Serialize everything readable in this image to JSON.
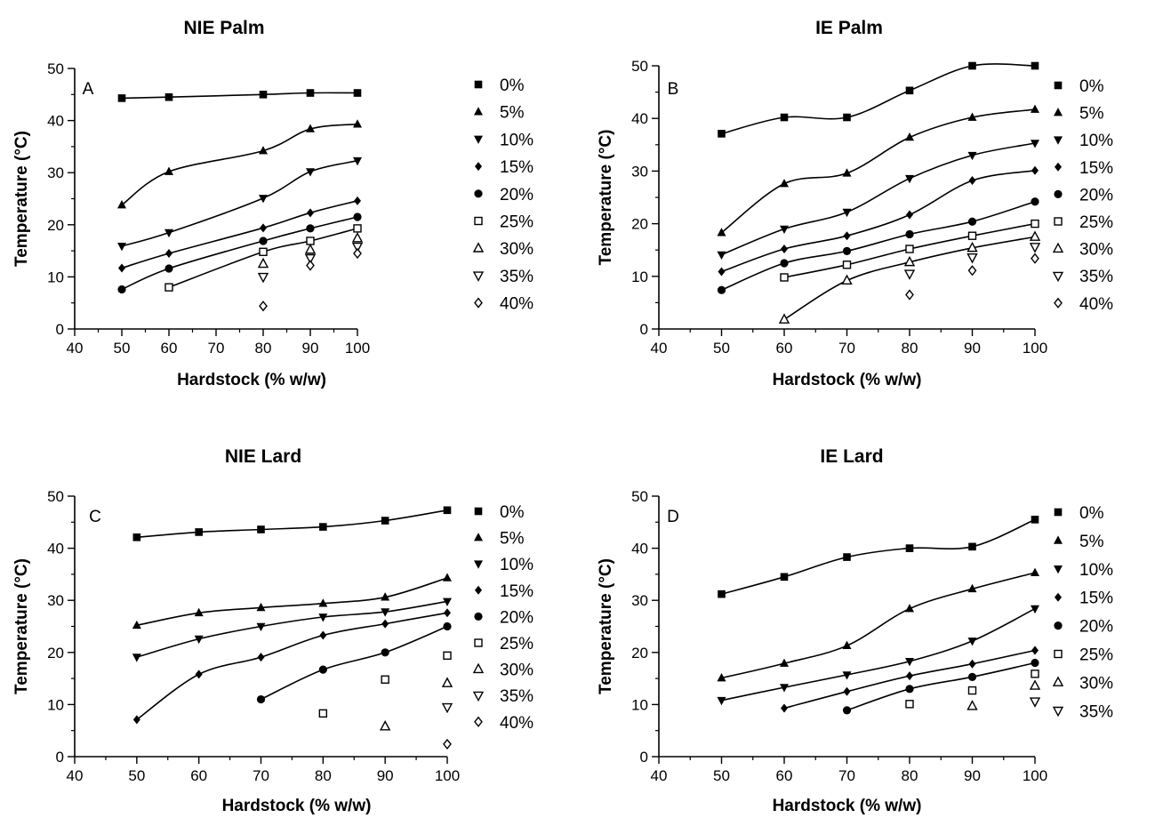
{
  "chart_data": [
    {
      "type": "line",
      "title": "NIE Palm",
      "panel_label": "A",
      "xlabel": "Hardstock (% w/w)",
      "ylabel": "Temperature (°C)",
      "xlim": [
        40,
        100
      ],
      "ylim": [
        0,
        50
      ],
      "xticks": [
        40,
        50,
        60,
        70,
        80,
        90,
        100
      ],
      "yticks": [
        0,
        10,
        20,
        30,
        40,
        50
      ],
      "grid": false,
      "legend_position": "right",
      "series": [
        {
          "name": "0%",
          "marker": "filled-square",
          "curve": true,
          "x": [
            50,
            60,
            80,
            90,
            100
          ],
          "y": [
            44.3,
            44.5,
            45.0,
            45.3,
            45.3
          ]
        },
        {
          "name": "5%",
          "marker": "filled-triangle-up",
          "curve": true,
          "x": [
            50,
            60,
            80,
            90,
            100
          ],
          "y": [
            23.8,
            30.2,
            34.2,
            38.4,
            39.3
          ]
        },
        {
          "name": "10%",
          "marker": "filled-triangle-down",
          "curve": true,
          "x": [
            50,
            60,
            80,
            90,
            100
          ],
          "y": [
            15.9,
            18.5,
            25.1,
            30.2,
            32.3
          ]
        },
        {
          "name": "15%",
          "marker": "filled-diamond",
          "curve": true,
          "x": [
            50,
            60,
            80,
            90,
            100
          ],
          "y": [
            11.7,
            14.5,
            19.4,
            22.3,
            24.6
          ]
        },
        {
          "name": "20%",
          "marker": "filled-circle",
          "curve": true,
          "x": [
            50,
            60,
            80,
            90,
            100
          ],
          "y": [
            7.6,
            11.6,
            16.9,
            19.3,
            21.5
          ]
        },
        {
          "name": "25%",
          "marker": "open-square",
          "curve": true,
          "x": [
            60,
            80,
            90,
            100
          ],
          "y": [
            8.0,
            14.8,
            16.9,
            19.3
          ]
        },
        {
          "name": "30%",
          "marker": "open-triangle-up",
          "curve": false,
          "x": [
            80,
            90,
            100
          ],
          "y": [
            12.5,
            15.2,
            17.4
          ]
        },
        {
          "name": "35%",
          "marker": "open-triangle-down",
          "curve": false,
          "x": [
            80,
            90,
            100
          ],
          "y": [
            10.0,
            13.6,
            15.8
          ]
        },
        {
          "name": "40%",
          "marker": "open-diamond",
          "curve": false,
          "x": [
            80,
            90,
            100
          ],
          "y": [
            4.4,
            12.2,
            14.5
          ]
        }
      ]
    },
    {
      "type": "line",
      "title": "IE Palm",
      "panel_label": "B",
      "xlabel": "Hardstock (% w/w)",
      "ylabel": "Temperature (°C)",
      "xlim": [
        40,
        100
      ],
      "ylim": [
        0,
        50
      ],
      "xticks": [
        40,
        50,
        60,
        70,
        80,
        90,
        100
      ],
      "yticks": [
        0,
        10,
        20,
        30,
        40,
        50
      ],
      "grid": false,
      "legend_position": "right",
      "series": [
        {
          "name": "0%",
          "marker": "filled-square",
          "curve": true,
          "x": [
            50,
            60,
            70,
            80,
            90,
            100
          ],
          "y": [
            37.1,
            40.2,
            40.2,
            45.3,
            50.0,
            50.0
          ]
        },
        {
          "name": "5%",
          "marker": "filled-triangle-up",
          "curve": true,
          "x": [
            50,
            60,
            70,
            80,
            90,
            100
          ],
          "y": [
            18.3,
            27.6,
            29.6,
            36.4,
            40.2,
            41.7
          ]
        },
        {
          "name": "10%",
          "marker": "filled-triangle-down",
          "curve": true,
          "x": [
            50,
            60,
            70,
            80,
            90,
            100
          ],
          "y": [
            14.1,
            19.0,
            22.2,
            28.6,
            33.0,
            35.3
          ]
        },
        {
          "name": "15%",
          "marker": "filled-diamond",
          "curve": true,
          "x": [
            50,
            60,
            70,
            80,
            90,
            100
          ],
          "y": [
            10.9,
            15.2,
            17.7,
            21.7,
            28.2,
            30.1
          ]
        },
        {
          "name": "20%",
          "marker": "filled-circle",
          "curve": true,
          "x": [
            50,
            60,
            70,
            80,
            90,
            100
          ],
          "y": [
            7.4,
            12.5,
            14.8,
            18.0,
            20.4,
            24.2
          ]
        },
        {
          "name": "25%",
          "marker": "open-square",
          "curve": true,
          "x": [
            60,
            70,
            80,
            90,
            100
          ],
          "y": [
            9.8,
            12.2,
            15.2,
            17.7,
            20.0
          ]
        },
        {
          "name": "30%",
          "marker": "open-triangle-up",
          "curve": true,
          "x": [
            60,
            70,
            80,
            90,
            100
          ],
          "y": [
            1.8,
            9.2,
            12.7,
            15.4,
            17.5
          ]
        },
        {
          "name": "35%",
          "marker": "open-triangle-down",
          "curve": false,
          "x": [
            80,
            90,
            100
          ],
          "y": [
            10.5,
            13.6,
            15.6
          ]
        },
        {
          "name": "40%",
          "marker": "open-diamond",
          "curve": false,
          "x": [
            80,
            90,
            100
          ],
          "y": [
            6.5,
            11.1,
            13.4
          ]
        }
      ]
    },
    {
      "type": "line",
      "title": "NIE Lard",
      "panel_label": "C",
      "xlabel": "Hardstock (% w/w)",
      "ylabel": "Temperature (°C)",
      "xlim": [
        40,
        100
      ],
      "ylim": [
        0,
        50
      ],
      "xticks": [
        40,
        50,
        60,
        70,
        80,
        90,
        100
      ],
      "yticks": [
        0,
        10,
        20,
        30,
        40,
        50
      ],
      "grid": false,
      "legend_position": "right",
      "series": [
        {
          "name": "0%",
          "marker": "filled-square",
          "curve": true,
          "x": [
            50,
            60,
            70,
            80,
            90,
            100
          ],
          "y": [
            42.1,
            43.1,
            43.6,
            44.1,
            45.3,
            47.3
          ]
        },
        {
          "name": "5%",
          "marker": "filled-triangle-up",
          "curve": true,
          "x": [
            50,
            60,
            70,
            80,
            90,
            100
          ],
          "y": [
            25.2,
            27.6,
            28.6,
            29.4,
            30.6,
            34.3
          ]
        },
        {
          "name": "10%",
          "marker": "filled-triangle-down",
          "curve": true,
          "x": [
            50,
            60,
            70,
            80,
            90,
            100
          ],
          "y": [
            19.1,
            22.6,
            25.0,
            26.8,
            27.8,
            29.8
          ]
        },
        {
          "name": "15%",
          "marker": "filled-diamond",
          "curve": true,
          "x": [
            50,
            60,
            70,
            80,
            90,
            100
          ],
          "y": [
            7.1,
            15.8,
            19.1,
            23.3,
            25.5,
            27.6
          ]
        },
        {
          "name": "20%",
          "marker": "filled-circle",
          "curve": true,
          "x": [
            70,
            80,
            90,
            100
          ],
          "y": [
            11.0,
            16.7,
            20.0,
            25.0
          ]
        },
        {
          "name": "25%",
          "marker": "open-square",
          "curve": false,
          "x": [
            80,
            90,
            100
          ],
          "y": [
            8.3,
            14.8,
            19.4
          ]
        },
        {
          "name": "30%",
          "marker": "open-triangle-up",
          "curve": false,
          "x": [
            90,
            100
          ],
          "y": [
            5.8,
            14.1
          ]
        },
        {
          "name": "35%",
          "marker": "open-triangle-down",
          "curve": false,
          "x": [
            100
          ],
          "y": [
            9.5
          ]
        },
        {
          "name": "40%",
          "marker": "open-diamond",
          "curve": false,
          "x": [
            100
          ],
          "y": [
            2.4
          ]
        }
      ]
    },
    {
      "type": "line",
      "title": "IE Lard",
      "panel_label": "D",
      "xlabel": "Hardstock (% w/w)",
      "ylabel": "Temperature (°C)",
      "xlim": [
        40,
        100
      ],
      "ylim": [
        0,
        50
      ],
      "xticks": [
        40,
        50,
        60,
        70,
        80,
        90,
        100
      ],
      "yticks": [
        0,
        10,
        20,
        30,
        40,
        50
      ],
      "grid": false,
      "legend_position": "right",
      "series": [
        {
          "name": "0%",
          "marker": "filled-square",
          "curve": true,
          "x": [
            50,
            60,
            70,
            80,
            90,
            100
          ],
          "y": [
            31.2,
            34.5,
            38.3,
            40.0,
            40.3,
            45.5
          ]
        },
        {
          "name": "5%",
          "marker": "filled-triangle-up",
          "curve": true,
          "x": [
            50,
            60,
            70,
            80,
            90,
            100
          ],
          "y": [
            15.1,
            17.9,
            21.3,
            28.4,
            32.2,
            35.3
          ]
        },
        {
          "name": "10%",
          "marker": "filled-triangle-down",
          "curve": true,
          "x": [
            50,
            60,
            70,
            80,
            90,
            100
          ],
          "y": [
            10.8,
            13.3,
            15.7,
            18.3,
            22.2,
            28.4
          ]
        },
        {
          "name": "15%",
          "marker": "filled-diamond",
          "curve": true,
          "x": [
            60,
            70,
            80,
            90,
            100
          ],
          "y": [
            9.3,
            12.5,
            15.5,
            17.8,
            20.4
          ]
        },
        {
          "name": "20%",
          "marker": "filled-circle",
          "curve": true,
          "x": [
            70,
            80,
            90,
            100
          ],
          "y": [
            8.9,
            13.0,
            15.3,
            18.0
          ]
        },
        {
          "name": "25%",
          "marker": "open-square",
          "curve": false,
          "x": [
            80,
            90,
            100
          ],
          "y": [
            10.1,
            12.7,
            15.9
          ]
        },
        {
          "name": "30%",
          "marker": "open-triangle-up",
          "curve": false,
          "x": [
            90,
            100
          ],
          "y": [
            9.7,
            13.6
          ]
        },
        {
          "name": "35%",
          "marker": "open-triangle-down",
          "curve": false,
          "x": [
            100
          ],
          "y": [
            10.6
          ]
        }
      ]
    }
  ]
}
